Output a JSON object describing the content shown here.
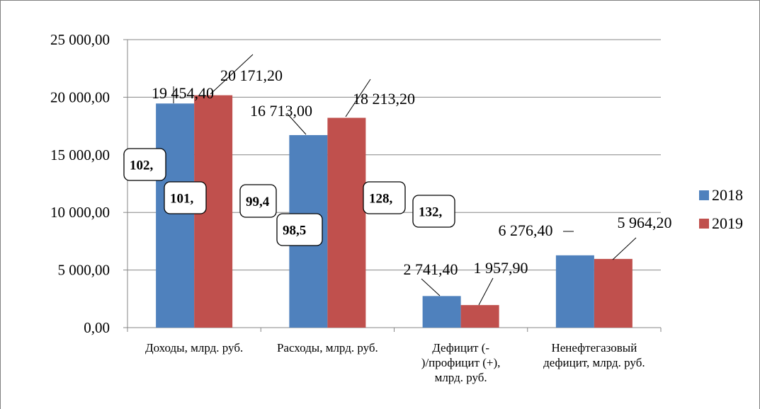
{
  "chart_data": {
    "type": "bar",
    "categories": [
      [
        "Доходы, млрд. руб."
      ],
      [
        "Расходы, млрд. руб."
      ],
      [
        "Дефицит (-",
        ")/профицит (+),",
        "млрд. руб."
      ],
      [
        "Ненефтегазовый",
        "дефицит, млрд. руб."
      ]
    ],
    "series": [
      {
        "name": "2018",
        "color": "#4F81BD",
        "values": [
          19454.4,
          16713.0,
          2741.4,
          6276.4
        ],
        "labels": [
          "19 454,40",
          "16 713,00",
          "2 741,40",
          "6 276,40"
        ]
      },
      {
        "name": "2019",
        "color": "#C0504D",
        "values": [
          20171.2,
          18213.2,
          1957.9,
          5964.2
        ],
        "labels": [
          "20 171,20",
          "18 213,20",
          "1 957,90",
          "5 964,20"
        ]
      }
    ],
    "ylim": [
      0,
      25000
    ],
    "yticks": [
      0,
      5000,
      10000,
      15000,
      20000,
      25000
    ],
    "ytick_labels": [
      "0,00",
      "5 000,00",
      "10 000,00",
      "15 000,00",
      "20 000,00",
      "25 000,00"
    ],
    "grid": true,
    "legend_position": "right",
    "annotations": [
      "102,",
      "101,",
      "99,4",
      "98,5",
      "128,",
      "132,"
    ]
  }
}
